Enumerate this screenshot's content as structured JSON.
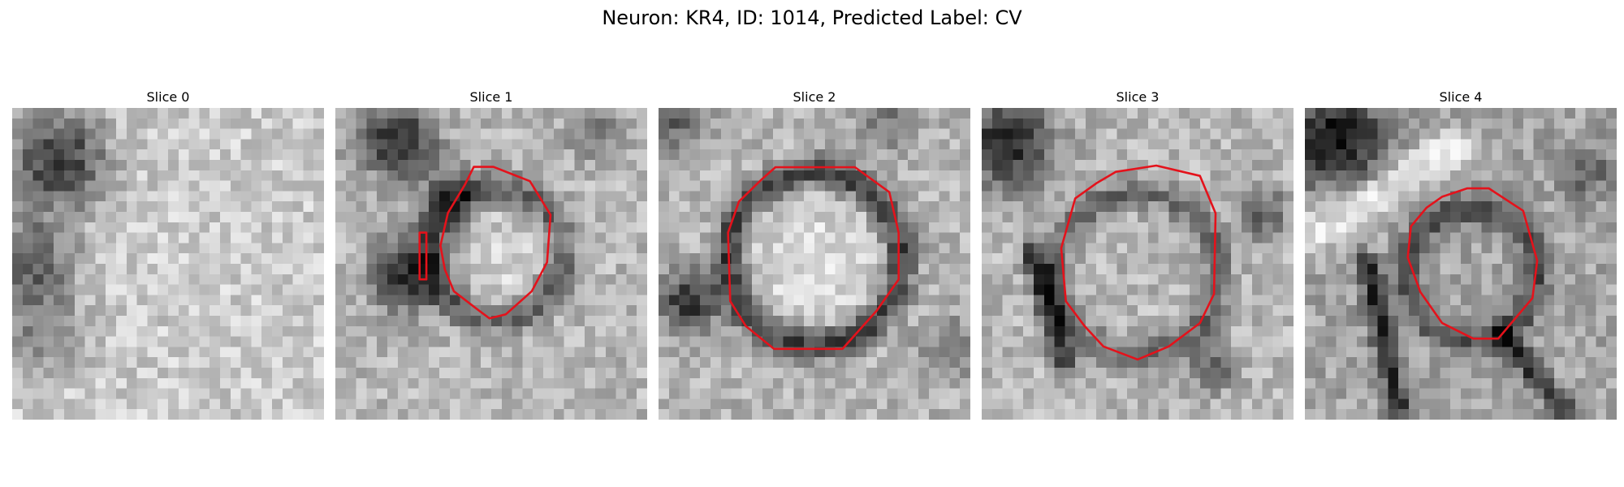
{
  "figure": {
    "title": "Neuron: KR4, ID: 1014, Predicted Label: CV"
  },
  "slices": [
    {
      "label": "Slice 0",
      "has_contour": false
    },
    {
      "label": "Slice 1",
      "has_contour": true
    },
    {
      "label": "Slice 2",
      "has_contour": true
    },
    {
      "label": "Slice 3",
      "has_contour": true
    },
    {
      "label": "Slice 4",
      "has_contour": true
    }
  ],
  "colors": {
    "background": "#ffffff",
    "contour": "#e4121b",
    "colormap": "grayscale"
  }
}
